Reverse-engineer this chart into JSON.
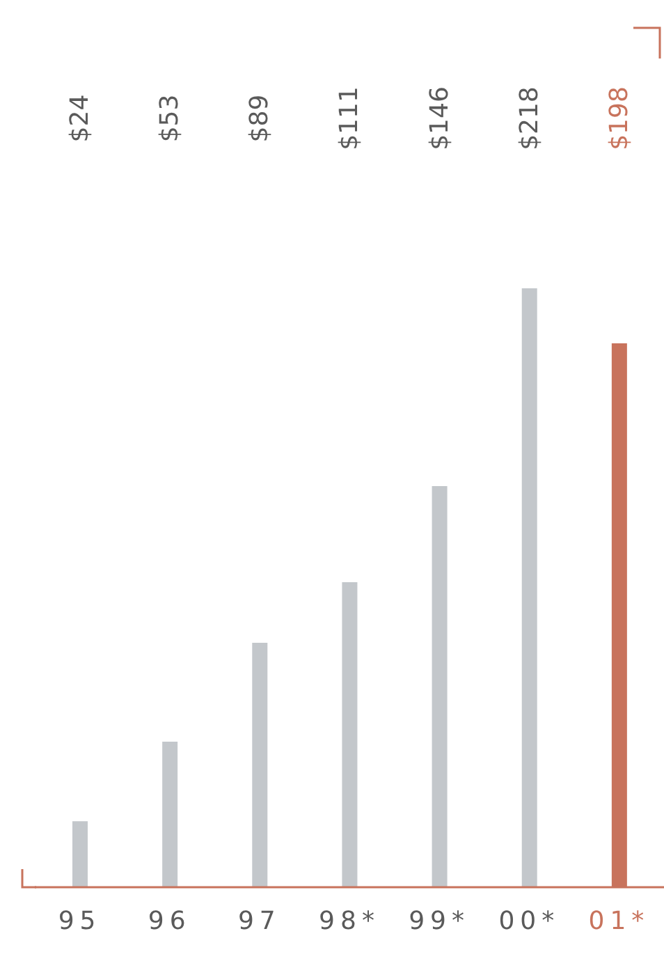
{
  "chart_data": {
    "type": "bar",
    "categories": [
      "95",
      "96",
      "97",
      "98*",
      "99*",
      "00*",
      "01*"
    ],
    "values": [
      24,
      53,
      89,
      111,
      146,
      218,
      198
    ],
    "colors": [
      "#c3c7cb",
      "#c3c7cb",
      "#c3c7cb",
      "#c3c7cb",
      "#c3c7cb",
      "#c3c7cb",
      "#c8735c"
    ],
    "value_labels": [
      "$24",
      "$53",
      "$89",
      "$111",
      "$146",
      "$218",
      "$198"
    ]
  }
}
